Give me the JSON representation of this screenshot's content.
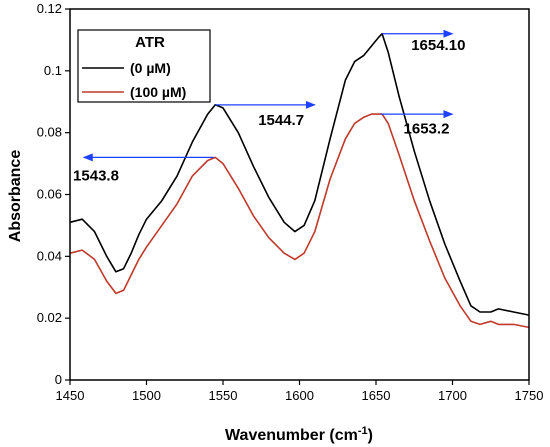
{
  "chart_data": {
    "type": "line",
    "title": "",
    "xlabel": "Wavenumber (cm-1)",
    "xlabel_parts": {
      "base": "Wavenumber (cm",
      "sup": "-1",
      "close": ")"
    },
    "ylabel": "Absorbance",
    "xlim": [
      1450,
      1750
    ],
    "ylim": [
      0,
      0.12
    ],
    "xticks": [
      1450,
      1500,
      1550,
      1600,
      1650,
      1700,
      1750
    ],
    "yticks": [
      0,
      0.02,
      0.04,
      0.06,
      0.08,
      0.1,
      0.12
    ],
    "ytick_labels": [
      "0",
      "0.02",
      "0.04",
      "0.06",
      "0.08",
      "0.1",
      "0.12"
    ],
    "grid": false,
    "legend": {
      "placement": "top-left",
      "title": "ATR",
      "entries": [
        "(0 µM)",
        "(100 µM)"
      ]
    },
    "series": [
      {
        "name": "(0 µM)",
        "color": "#000000",
        "x": [
          1450,
          1458,
          1466,
          1474,
          1480,
          1485,
          1490,
          1495,
          1500,
          1510,
          1520,
          1530,
          1540,
          1545,
          1550,
          1560,
          1570,
          1580,
          1590,
          1597,
          1603,
          1610,
          1620,
          1630,
          1636,
          1642,
          1647,
          1652,
          1654,
          1658,
          1665,
          1675,
          1685,
          1695,
          1705,
          1712,
          1718,
          1725,
          1730,
          1740,
          1750
        ],
        "y": [
          0.051,
          0.052,
          0.048,
          0.04,
          0.035,
          0.036,
          0.041,
          0.047,
          0.052,
          0.058,
          0.066,
          0.077,
          0.086,
          0.089,
          0.088,
          0.08,
          0.069,
          0.059,
          0.051,
          0.048,
          0.05,
          0.058,
          0.078,
          0.097,
          0.103,
          0.105,
          0.108,
          0.111,
          0.112,
          0.106,
          0.092,
          0.074,
          0.058,
          0.044,
          0.032,
          0.024,
          0.022,
          0.022,
          0.023,
          0.022,
          0.021
        ]
      },
      {
        "name": "(100 µM)",
        "color": "#c0392b",
        "x": [
          1450,
          1458,
          1466,
          1474,
          1480,
          1485,
          1490,
          1495,
          1500,
          1510,
          1520,
          1530,
          1540,
          1545,
          1550,
          1560,
          1570,
          1580,
          1590,
          1597,
          1603,
          1610,
          1620,
          1630,
          1636,
          1642,
          1647,
          1652,
          1654,
          1658,
          1665,
          1675,
          1685,
          1695,
          1705,
          1712,
          1718,
          1725,
          1730,
          1740,
          1750
        ],
        "y": [
          0.041,
          0.042,
          0.039,
          0.032,
          0.028,
          0.029,
          0.034,
          0.039,
          0.043,
          0.05,
          0.057,
          0.066,
          0.071,
          0.072,
          0.07,
          0.062,
          0.053,
          0.046,
          0.041,
          0.039,
          0.041,
          0.048,
          0.065,
          0.078,
          0.083,
          0.085,
          0.086,
          0.086,
          0.086,
          0.083,
          0.073,
          0.058,
          0.045,
          0.033,
          0.024,
          0.019,
          0.018,
          0.019,
          0.018,
          0.018,
          0.017
        ]
      }
    ],
    "annotations": [
      {
        "text": "1654.10",
        "arrow_from": [
          1654,
          0.112
        ],
        "arrow_to": [
          1700,
          0.112
        ],
        "label_at": [
          1673,
          0.1067
        ]
      },
      {
        "text": "1544.7",
        "arrow_from": [
          1545,
          0.089
        ],
        "arrow_to": [
          1610,
          0.089
        ],
        "label_at": [
          1573,
          0.0825
        ]
      },
      {
        "text": "1653.2",
        "arrow_from": [
          1653,
          0.086
        ],
        "arrow_to": [
          1700,
          0.086
        ],
        "label_at": [
          1668,
          0.0797
        ]
      },
      {
        "text": "1543.8",
        "arrow_from": [
          1544,
          0.072
        ],
        "arrow_to": [
          1459,
          0.072
        ],
        "label_at": [
          1452,
          0.0645
        ]
      }
    ],
    "arrow_color": "#1e40ff"
  }
}
